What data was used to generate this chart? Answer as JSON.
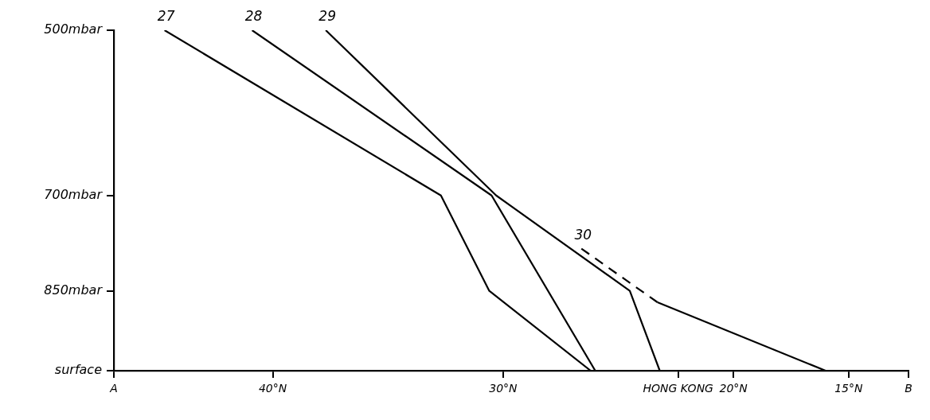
{
  "chart_data": {
    "type": "line",
    "log": "y",
    "marker": "none",
    "legend": false,
    "xlim": [
      46.9,
      12.4
    ],
    "xticks": [
      {
        "value": 46.9,
        "label": "A"
      },
      {
        "value": 40,
        "label": "40°N"
      },
      {
        "value": 30,
        "label": "30°N"
      },
      {
        "value": 22.4,
        "label": "HONG KONG"
      },
      {
        "value": 20,
        "label": "20°N"
      },
      {
        "value": 15,
        "label": "15°N"
      },
      {
        "value": 12.4,
        "label": "B"
      }
    ],
    "ylim": [
      1000,
      500
    ],
    "yticks": [
      {
        "value": 500,
        "label": "500mbar"
      },
      {
        "value": 700,
        "label": "700mbar"
      },
      {
        "value": 850,
        "label": "850mbar"
      },
      {
        "value": 1000,
        "label": "surface"
      }
    ],
    "series": [
      {
        "name": "27",
        "color": "#000000",
        "x": [
          44.7,
          32.7,
          30.6,
          26.2
        ],
        "values": [
          500,
          700,
          850,
          1000
        ]
      },
      {
        "name": "28",
        "color": "#000000",
        "x": [
          40.9,
          30.5,
          26.0
        ],
        "values": [
          500,
          700,
          1000
        ]
      },
      {
        "name": "29",
        "color": "#000000",
        "x": [
          37.7,
          30.3,
          24.5,
          23.2
        ],
        "values": [
          500,
          700,
          850,
          1000
        ]
      },
      {
        "name": "30",
        "color": "#000000",
        "line_style": "dashed",
        "x": [
          26.6,
          23.3
        ],
        "values": [
          780,
          870
        ]
      },
      {
        "color": "#000000",
        "x": [
          23.3,
          16.0
        ],
        "values": [
          870,
          1000
        ]
      }
    ]
  }
}
